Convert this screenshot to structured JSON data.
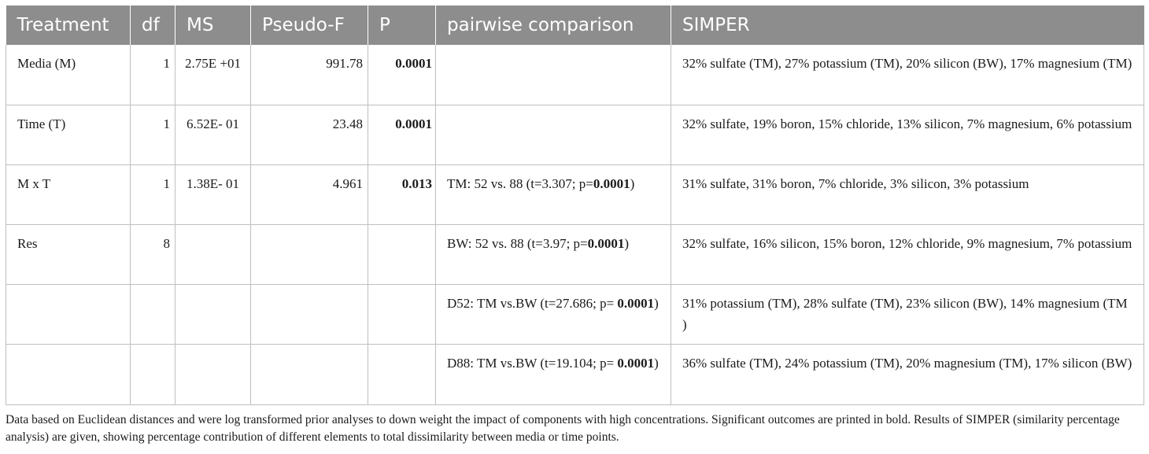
{
  "headers": [
    "Treatment",
    "df",
    "MS",
    "Pseudo-F",
    "P",
    "pairwise comparison",
    "SIMPER"
  ],
  "rows": [
    {
      "treatment": "Media (M)",
      "df": "1",
      "ms": "2.75E +01",
      "pseudo_f": "991.78",
      "p": "0.0001",
      "pairwise_pre": "",
      "pairwise_bold": "",
      "pairwise_post": "",
      "simper": "32% sulfate (TM), 27% potassium (TM), 20% silicon (BW), 17% magnesium (TM)"
    },
    {
      "treatment": "Time (T)",
      "df": "1",
      "ms": "6.52E- 01",
      "pseudo_f": "23.48",
      "p": "0.0001",
      "pairwise_pre": "",
      "pairwise_bold": "",
      "pairwise_post": "",
      "simper": "32% sulfate, 19% boron, 15% chloride, 13% silicon, 7% magnesium, 6% potassium"
    },
    {
      "treatment": "M x T",
      "df": "1",
      "ms": "1.38E- 01",
      "pseudo_f": "4.961",
      "p": "0.013",
      "pairwise_pre": "TM: 52 vs. 88 (t=3.307; p=",
      "pairwise_bold": "0.0001",
      "pairwise_post": ")",
      "simper": "31% sulfate, 31% boron, 7% chloride, 3% silicon, 3% potassium"
    },
    {
      "treatment": "Res",
      "df": "8",
      "ms": "",
      "pseudo_f": "",
      "p": "",
      "pairwise_pre": "BW: 52 vs. 88 (t=3.97; p=",
      "pairwise_bold": "0.0001",
      "pairwise_post": ")",
      "simper": "32% sulfate, 16% silicon, 15% boron, 12% chloride, 9% magnesium, 7% potassium"
    },
    {
      "treatment": "",
      "df": "",
      "ms": "",
      "pseudo_f": "",
      "p": "",
      "pairwise_pre": "D52: TM vs.BW (t=27.686; p= ",
      "pairwise_bold": "0.0001",
      "pairwise_post": ")",
      "simper": "31% potassium (TM), 28% sulfate (TM), 23% silicon (BW), 14% magnesium (TM )"
    },
    {
      "treatment": "",
      "df": "",
      "ms": "",
      "pseudo_f": "",
      "p": "",
      "pairwise_pre": "D88: TM vs.BW (t=19.104; p= ",
      "pairwise_bold": "0.0001",
      "pairwise_post": ")",
      "simper": "36% sulfate (TM), 24% potassium (TM), 20% magnesium (TM), 17% silicon (BW)"
    }
  ],
  "footnote": "Data based on Euclidean distances and were log transformed prior analyses to down weight the impact of components with high concentrations. Significant outcomes are printed in bold. Results of SIMPER (similarity percentage analysis) are given, showing percentage contribution of different elements to total dissimilarity between media or time points."
}
